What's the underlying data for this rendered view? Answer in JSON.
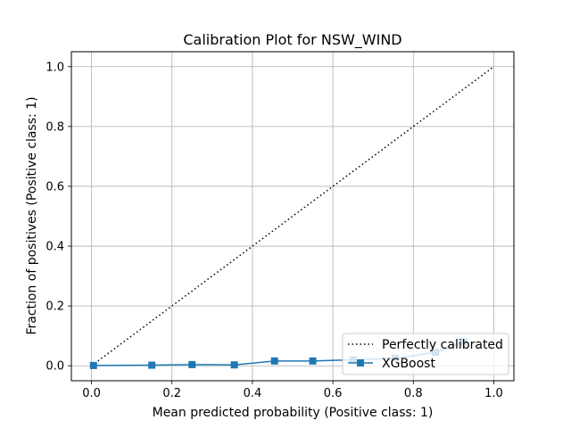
{
  "chart_data": {
    "type": "line",
    "title": "Calibration Plot for NSW_WIND",
    "xlabel": "Mean predicted probability (Positive class: 1)",
    "ylabel": "Fraction of positives (Positive class: 1)",
    "xlim": [
      -0.05,
      1.05
    ],
    "ylim": [
      -0.05,
      1.05
    ],
    "xticks": [
      "0.0",
      "0.2",
      "0.4",
      "0.6",
      "0.8",
      "1.0"
    ],
    "yticks": [
      "0.0",
      "0.2",
      "0.4",
      "0.6",
      "0.8",
      "1.0"
    ],
    "grid": true,
    "legend_position": "lower-right",
    "series": [
      {
        "name": "Perfectly calibrated",
        "style": "dotted",
        "color": "#000000",
        "x": [
          0,
          1
        ],
        "y": [
          0,
          1
        ]
      },
      {
        "name": "XGBoost",
        "style": "solid-square-markers",
        "color": "#1f77b4",
        "x": [
          0.005,
          0.15,
          0.25,
          0.355,
          0.455,
          0.55,
          0.65,
          0.755,
          0.855,
          0.925
        ],
        "y": [
          0.001,
          0.002,
          0.004,
          0.003,
          0.016,
          0.016,
          0.02,
          0.025,
          0.045,
          0.08
        ]
      }
    ]
  }
}
